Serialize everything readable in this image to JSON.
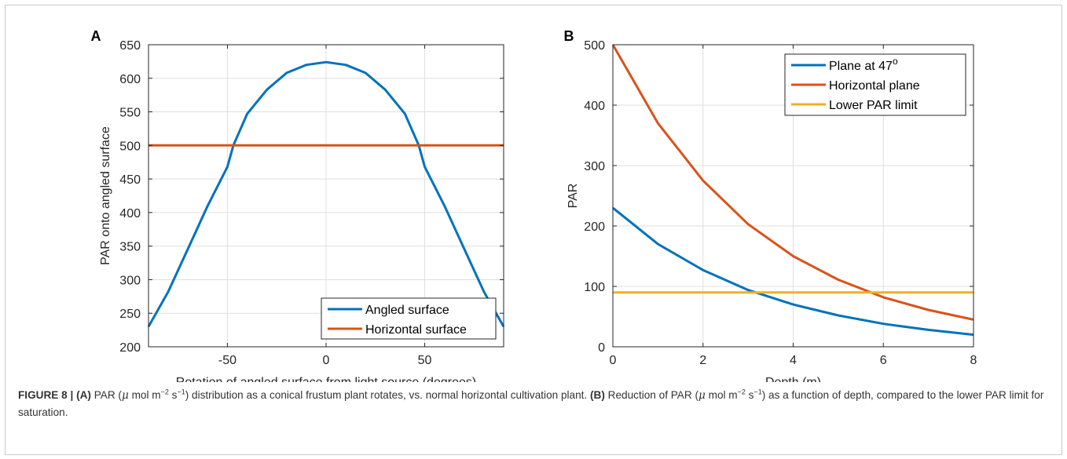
{
  "panels": [
    {
      "label": "A",
      "chart_data": {
        "type": "line",
        "xlabel": "Rotation of angled surface from light source (degrees)",
        "ylabel": "PAR onto angled surface",
        "xlim": [
          -90,
          90
        ],
        "ylim": [
          200,
          650
        ],
        "xticks": [
          -50,
          0,
          50
        ],
        "yticks": [
          200,
          250,
          300,
          350,
          400,
          450,
          500,
          550,
          600,
          650
        ],
        "grid": true,
        "legend_position": "bottom-right",
        "series": [
          {
            "name": "Angled surface",
            "color": "#0072BD",
            "x": [
              -90,
              -80,
              -70,
              -60,
              -50,
              -47,
              -40,
              -30,
              -20,
              -10,
              0,
              10,
              20,
              30,
              40,
              47,
              50,
              60,
              70,
              80,
              90
            ],
            "y": [
              230,
              282,
              346,
              410,
              468,
              500,
              547,
              583,
              608,
              620,
              624,
              620,
              608,
              583,
              547,
              500,
              468,
              410,
              346,
              282,
              230
            ]
          },
          {
            "name": "Horizontal surface",
            "color": "#D95319",
            "x": [
              -90,
              90
            ],
            "y": [
              500,
              500
            ]
          }
        ]
      }
    },
    {
      "label": "B",
      "chart_data": {
        "type": "line",
        "xlabel": "Depth (m)",
        "ylabel": "PAR",
        "xlim": [
          0,
          8
        ],
        "ylim": [
          0,
          500
        ],
        "xticks": [
          0,
          2,
          4,
          6,
          8
        ],
        "yticks": [
          0,
          100,
          200,
          300,
          400,
          500
        ],
        "grid": true,
        "legend_position": "top-right",
        "series": [
          {
            "name": "Plane at 47",
            "name_superscript": "o",
            "color": "#0072BD",
            "x": [
              0,
              1,
              2,
              3,
              4,
              5,
              6,
              7,
              8
            ],
            "y": [
              230,
              170,
              127,
              94,
              70,
              52,
              38,
              28,
              20
            ]
          },
          {
            "name": "Horizontal plane",
            "color": "#D95319",
            "x": [
              0,
              1,
              2,
              3,
              4,
              5,
              6,
              7,
              8
            ],
            "y": [
              500,
              370,
              275,
              203,
              150,
              111,
              82,
              61,
              45
            ]
          },
          {
            "name": "Lower PAR limit",
            "color": "#EDB120",
            "x": [
              0,
              8
            ],
            "y": [
              90,
              90
            ]
          }
        ]
      }
    }
  ],
  "caption": {
    "figure_label": "FIGURE 8 |",
    "a_tag": "(A)",
    "a_text_1": " PAR (",
    "mu": "μ",
    "unit_mol": " mol m",
    "exp_m": "−2",
    "unit_s": " s",
    "exp_s": "−1",
    "a_text_2": ") distribution as a conical frustum plant rotates, vs. normal horizontal cultivation plant. ",
    "b_tag": "(B)",
    "b_text_1": " Reduction of PAR (",
    "b_text_2": ") as a function of depth, compared to the lower PAR limit for saturation."
  }
}
